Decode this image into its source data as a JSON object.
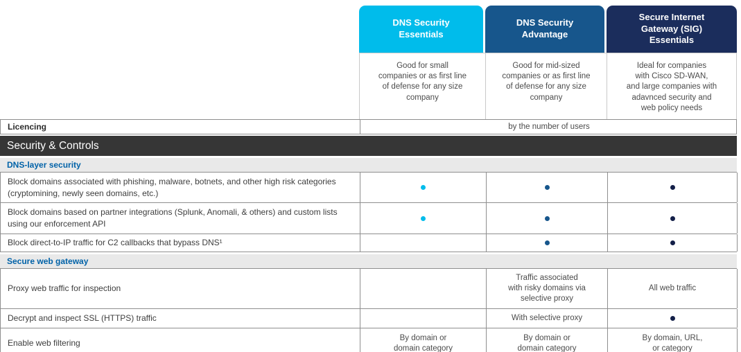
{
  "table": {
    "columns": [
      {
        "name": "DNS Security\nEssentials",
        "color": "#00bceb",
        "description": "Good for small\ncompanies or as first line\nof defense for any size\ncompany"
      },
      {
        "name": "DNS Security\nAdvantage",
        "color": "#17568c",
        "description": "Good for mid-sized\ncompanies or as first line\nof defense for any size\ncompany"
      },
      {
        "name": "Secure Internet\nGateway (SIG)\nEssentials",
        "color": "#1b2d5c",
        "description": "Ideal for companies\nwith Cisco SD-WAN,\nand large companies with\nadavnced security and\nweb policy needs"
      }
    ],
    "licensing": {
      "label": "Licencing",
      "value": "by the number of users"
    },
    "sections": [
      {
        "title": "Security & Controls",
        "subsections": [
          {
            "title": "DNS-layer security",
            "rows": [
              {
                "label": "Block domains associated with phishing, malware, botnets, and other high risk categories (cryptomining, newly seen domains, etc.)",
                "cells": [
                  {
                    "dot": "#00bceb"
                  },
                  {
                    "dot": "#17568c"
                  },
                  {
                    "dot": "#131f48"
                  }
                ]
              },
              {
                "label": "Block domains based on partner integrations (Splunk, Anomali, & others) and custom lists using our enforcement API",
                "cells": [
                  {
                    "dot": "#00bceb"
                  },
                  {
                    "dot": "#17568c"
                  },
                  {
                    "dot": "#131f48"
                  }
                ]
              },
              {
                "label": "Block direct-to-IP traffic for C2 callbacks that bypass DNS¹",
                "cells": [
                  {},
                  {
                    "dot": "#17568c"
                  },
                  {
                    "dot": "#131f48"
                  }
                ]
              }
            ]
          },
          {
            "title": "Secure web gateway",
            "rows": [
              {
                "label": "Proxy web traffic for inspection",
                "cells": [
                  {},
                  {
                    "text": "Traffic associated\nwith risky domains via\nselective proxy"
                  },
                  {
                    "text": "All web traffic"
                  }
                ]
              },
              {
                "label": "Decrypt and inspect SSL (HTTPS) traffic",
                "cells": [
                  {},
                  {
                    "text": "With selective proxy"
                  },
                  {
                    "dot": "#131f48"
                  }
                ]
              },
              {
                "label": "Enable web filtering",
                "cells": [
                  {
                    "text": "By domain or\ndomain category"
                  },
                  {
                    "text": "By domain or\ndomain category"
                  },
                  {
                    "text": "By domain, URL,\nor category"
                  }
                ]
              }
            ]
          }
        ]
      }
    ]
  }
}
